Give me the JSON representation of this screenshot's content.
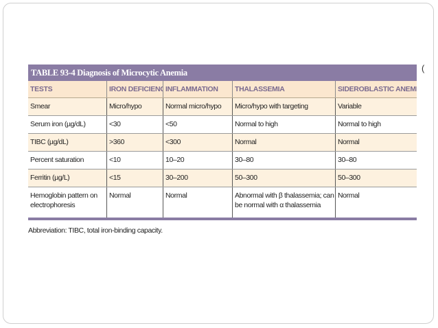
{
  "table": {
    "title": "TABLE 93-4  Diagnosis of Microcytic Anemia",
    "headers": [
      "TESTS",
      "IRON DEFICIENCY",
      "INFLAMMATION",
      "THALASSEMIA",
      "SIDEROBLASTIC ANEMIA"
    ],
    "rows": [
      [
        "Smear",
        "Micro/hypo",
        "Normal micro/hypo",
        "Micro/hypo with targeting",
        "Variable"
      ],
      [
        "Serum iron (µg/dL)",
        "<30",
        "<50",
        "Normal to high",
        "Normal to high"
      ],
      [
        "TIBC (µg/dL)",
        ">360",
        "<300",
        "Normal",
        "Normal"
      ],
      [
        "Percent saturation",
        "<10",
        "10–20",
        "30–80",
        "30–80"
      ],
      [
        "Ferritin (µg/L)",
        "<15",
        "30–200",
        "50–300",
        "50–300"
      ],
      [
        "Hemoglobin pattern on electrophoresis",
        "Normal",
        "Normal",
        "Abnormal with β thalassemia; can be normal with α thalassemia",
        "Normal"
      ]
    ],
    "abbreviation": "Abbreviation: TIBC, total iron-binding capacity."
  },
  "slide": {
    "edge_mark": "("
  },
  "colors": {
    "title_bar": "#8a7ca4",
    "header_bg": "#fbe7cf",
    "alt_row_bg": "#fdf1df",
    "header_text": "#7a6a8f"
  }
}
